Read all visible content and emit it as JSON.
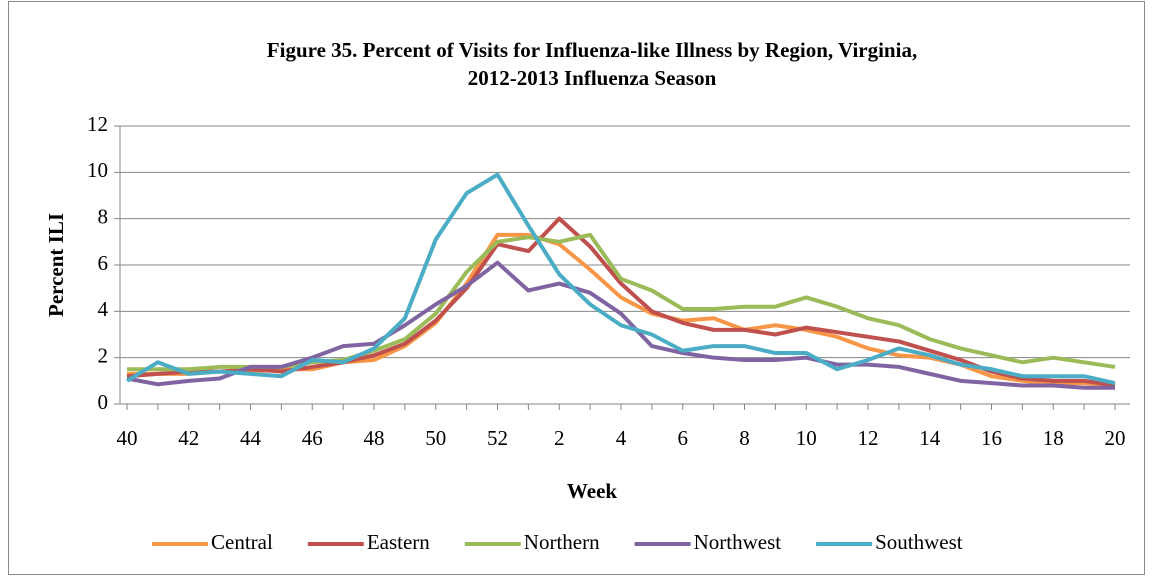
{
  "chart_data": {
    "type": "line",
    "title": [
      "Figure 35.  Percent of Visits for Influenza-like Illness by Region, Virginia,",
      "2012-2013 Influenza Season"
    ],
    "x_label": "Week",
    "y_label": "Percent ILI",
    "categories": [
      "40",
      null,
      "42",
      null,
      "44",
      null,
      "46",
      null,
      "48",
      null,
      "50",
      null,
      "52",
      null,
      "2",
      null,
      "4",
      null,
      "6",
      null,
      "8",
      null,
      "10",
      null,
      "12",
      null,
      "14",
      null,
      "16",
      null,
      "18",
      null,
      "20"
    ],
    "ylim": [
      0,
      12
    ],
    "yticks": [
      0,
      2,
      4,
      6,
      8,
      10,
      12
    ],
    "grid": true,
    "legend": "bottom",
    "series": [
      {
        "name": "Central",
        "color": "#f79646",
        "values": [
          1.3,
          1.3,
          1.3,
          1.4,
          1.4,
          1.5,
          1.5,
          1.8,
          1.9,
          2.5,
          3.5,
          5.2,
          7.3,
          7.3,
          6.9,
          5.8,
          4.6,
          3.9,
          3.6,
          3.7,
          3.2,
          3.4,
          3.2,
          2.9,
          2.4,
          2.1,
          2.0,
          1.7,
          1.2,
          1.0,
          0.9,
          0.9,
          0.8
        ]
      },
      {
        "name": "Eastern",
        "color": "#c0504d",
        "values": [
          1.2,
          1.3,
          1.4,
          1.4,
          1.5,
          1.4,
          1.6,
          1.8,
          2.1,
          2.6,
          3.6,
          5.0,
          6.9,
          6.6,
          8.0,
          6.8,
          5.2,
          4.0,
          3.5,
          3.2,
          3.2,
          3.0,
          3.3,
          3.1,
          2.9,
          2.7,
          2.3,
          1.9,
          1.4,
          1.1,
          1.0,
          1.0,
          0.8
        ]
      },
      {
        "name": "Northern",
        "color": "#9bbb59",
        "values": [
          1.5,
          1.5,
          1.5,
          1.6,
          1.6,
          1.6,
          1.8,
          1.9,
          2.3,
          2.8,
          3.9,
          5.7,
          7.0,
          7.2,
          7.0,
          7.3,
          5.4,
          4.9,
          4.1,
          4.1,
          4.2,
          4.2,
          4.6,
          4.2,
          3.7,
          3.4,
          2.8,
          2.4,
          2.1,
          1.8,
          2.0,
          1.8,
          1.6
        ]
      },
      {
        "name": "Northwest",
        "color": "#8064a2",
        "values": [
          1.1,
          0.85,
          1.0,
          1.1,
          1.6,
          1.6,
          2.0,
          2.5,
          2.6,
          3.4,
          4.3,
          5.1,
          6.1,
          4.9,
          5.2,
          4.8,
          3.9,
          2.5,
          2.2,
          2.0,
          1.9,
          1.9,
          2.0,
          1.7,
          1.7,
          1.6,
          1.3,
          1.0,
          0.9,
          0.8,
          0.8,
          0.7,
          0.7
        ]
      },
      {
        "name": "Southwest",
        "color": "#4bacc6",
        "values": [
          1.0,
          1.8,
          1.3,
          1.4,
          1.3,
          1.2,
          1.9,
          1.8,
          2.4,
          3.7,
          7.1,
          9.1,
          9.9,
          7.7,
          5.6,
          4.3,
          3.4,
          3.0,
          2.3,
          2.5,
          2.5,
          2.2,
          2.2,
          1.5,
          1.9,
          2.4,
          2.1,
          1.7,
          1.5,
          1.2,
          1.2,
          1.2,
          0.9
        ]
      }
    ]
  }
}
